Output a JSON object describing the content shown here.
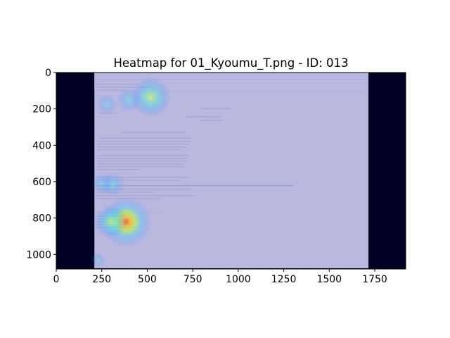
{
  "chart_data": {
    "type": "heatmap",
    "title": "Heatmap for 01_Kyoumu_T.png - ID: 013",
    "xlim": [
      0,
      1920
    ],
    "ylim": [
      1080,
      0
    ],
    "x_ticks": [
      0,
      250,
      500,
      750,
      1000,
      1250,
      1500,
      1750
    ],
    "y_ticks": [
      0,
      200,
      400,
      600,
      800,
      1000
    ],
    "grid": false,
    "background_image": {
      "x_range": [
        210,
        1715
      ],
      "y_range": [
        0,
        1075
      ]
    },
    "hotspots": [
      {
        "x": 385,
        "y": 820,
        "intensity": 1.0,
        "radius": 140
      },
      {
        "x": 300,
        "y": 820,
        "intensity": 0.7,
        "radius": 90
      },
      {
        "x": 310,
        "y": 615,
        "intensity": 0.55,
        "radius": 70
      },
      {
        "x": 250,
        "y": 610,
        "intensity": 0.35,
        "radius": 55
      },
      {
        "x": 520,
        "y": 135,
        "intensity": 0.75,
        "radius": 110
      },
      {
        "x": 400,
        "y": 150,
        "intensity": 0.4,
        "radius": 70
      },
      {
        "x": 280,
        "y": 175,
        "intensity": 0.3,
        "radius": 55
      },
      {
        "x": 230,
        "y": 1030,
        "intensity": 0.3,
        "radius": 40
      }
    ],
    "colormap": "jet"
  },
  "colors": {
    "letterbox": "#000022",
    "overlay": "#a9a9d9",
    "page": "#ffffff",
    "link": "#3355cc"
  }
}
